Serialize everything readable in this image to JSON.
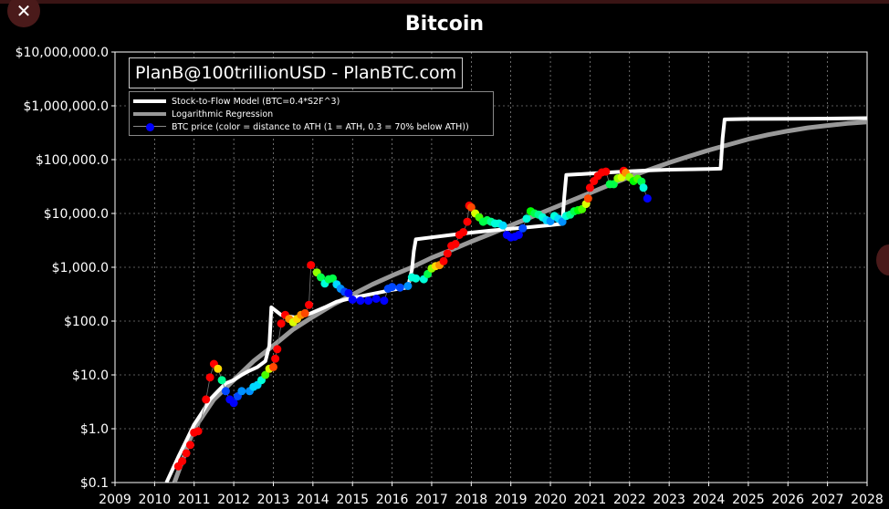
{
  "window": {
    "close_label": "✕"
  },
  "chart_data": {
    "type": "line",
    "title": "Bitcoin",
    "watermark": "PlanB@100trillionUSD - PlanBTC.com",
    "x_ticks": [
      "2009",
      "2010",
      "2011",
      "2012",
      "2013",
      "2014",
      "2015",
      "2016",
      "2017",
      "2018",
      "2019",
      "2020",
      "2021",
      "2022",
      "2023",
      "2024",
      "2025",
      "2026",
      "2027",
      "2028"
    ],
    "y_ticks": [
      "$0.1",
      "$1.0",
      "$10.0",
      "$100.0",
      "$1,000.0",
      "$10,000.0",
      "$100,000.0",
      "$1,000,000.0",
      "$10,000,000.0"
    ],
    "xlim": [
      2009,
      2028
    ],
    "ylim": [
      0.1,
      10000000
    ],
    "yscale": "log",
    "grid": true,
    "legend_position": "top-left",
    "series": [
      {
        "name": "Stock-to-Flow Model (BTC=0.4*S2F^3)",
        "style": "line",
        "color": "#ffffff",
        "points": [
          [
            2010.3,
            0.1
          ],
          [
            2010.6,
            0.3
          ],
          [
            2010.8,
            0.6
          ],
          [
            2011.0,
            1.2
          ],
          [
            2011.2,
            2.0
          ],
          [
            2011.4,
            3.5
          ],
          [
            2011.6,
            5
          ],
          [
            2011.8,
            7
          ],
          [
            2012.0,
            8
          ],
          [
            2012.2,
            10
          ],
          [
            2012.4,
            12
          ],
          [
            2012.6,
            14
          ],
          [
            2012.8,
            18
          ],
          [
            2012.9,
            35
          ],
          [
            2012.95,
            180
          ],
          [
            2013.2,
            130
          ],
          [
            2013.6,
            115
          ],
          [
            2013.9,
            135
          ],
          [
            2014.3,
            180
          ],
          [
            2014.6,
            230
          ],
          [
            2015.0,
            270
          ],
          [
            2015.5,
            320
          ],
          [
            2016.0,
            380
          ],
          [
            2016.4,
            420
          ],
          [
            2016.5,
            900
          ],
          [
            2016.55,
            2000
          ],
          [
            2016.6,
            3300
          ],
          [
            2017.0,
            3600
          ],
          [
            2017.5,
            4000
          ],
          [
            2018.0,
            4400
          ],
          [
            2018.5,
            4800
          ],
          [
            2019.0,
            5200
          ],
          [
            2019.5,
            5600
          ],
          [
            2020.0,
            6100
          ],
          [
            2020.3,
            6400
          ],
          [
            2020.35,
            20000
          ],
          [
            2020.4,
            52000
          ],
          [
            2021.0,
            55000
          ],
          [
            2021.5,
            58000
          ],
          [
            2022.0,
            61000
          ],
          [
            2022.5,
            63000
          ],
          [
            2023.0,
            65000
          ],
          [
            2023.5,
            66000
          ],
          [
            2024.0,
            67000
          ],
          [
            2024.3,
            68000
          ],
          [
            2024.35,
            250000
          ],
          [
            2024.4,
            560000
          ],
          [
            2025.0,
            570000
          ],
          [
            2026.0,
            575000
          ],
          [
            2027.0,
            580000
          ],
          [
            2028.0,
            590000
          ]
        ]
      },
      {
        "name": "Logarithmic Regression",
        "style": "line",
        "color": "#999999",
        "points": [
          [
            2010.5,
            0.1
          ],
          [
            2011.0,
            1.0
          ],
          [
            2011.5,
            3.5
          ],
          [
            2012.0,
            8
          ],
          [
            2012.5,
            18
          ],
          [
            2013.0,
            35
          ],
          [
            2013.5,
            70
          ],
          [
            2014.0,
            120
          ],
          [
            2014.5,
            200
          ],
          [
            2015.0,
            310
          ],
          [
            2015.5,
            480
          ],
          [
            2016.0,
            700
          ],
          [
            2016.5,
            1000
          ],
          [
            2017.0,
            1500
          ],
          [
            2017.5,
            2100
          ],
          [
            2018.0,
            3000
          ],
          [
            2018.5,
            4200
          ],
          [
            2019.0,
            6000
          ],
          [
            2019.5,
            8500
          ],
          [
            2020.0,
            12000
          ],
          [
            2020.5,
            17000
          ],
          [
            2021.0,
            24000
          ],
          [
            2021.5,
            34000
          ],
          [
            2022.0,
            48000
          ],
          [
            2022.5,
            65000
          ],
          [
            2023.0,
            88000
          ],
          [
            2023.5,
            115000
          ],
          [
            2024.0,
            150000
          ],
          [
            2024.5,
            190000
          ],
          [
            2025.0,
            240000
          ],
          [
            2025.5,
            290000
          ],
          [
            2026.0,
            340000
          ],
          [
            2026.5,
            390000
          ],
          [
            2027.0,
            430000
          ],
          [
            2027.5,
            470000
          ],
          [
            2028.0,
            500000
          ]
        ]
      },
      {
        "name": "BTC price (color = distance to ATH (1 = ATH, 0.3 = 70% below ATH))",
        "style": "scatter",
        "color": "#0000ff",
        "points": [
          [
            2010.6,
            0.2,
            1.0
          ],
          [
            2010.7,
            0.25,
            1.0
          ],
          [
            2010.8,
            0.35,
            1.0
          ],
          [
            2010.9,
            0.5,
            1.0
          ],
          [
            2011.0,
            0.85,
            1.0
          ],
          [
            2011.1,
            0.9,
            1.0
          ],
          [
            2011.3,
            3.5,
            1.0
          ],
          [
            2011.4,
            9,
            1.0
          ],
          [
            2011.5,
            16,
            1.0
          ],
          [
            2011.6,
            13,
            0.85
          ],
          [
            2011.7,
            8,
            0.55
          ],
          [
            2011.8,
            5,
            0.35
          ],
          [
            2011.9,
            3.5,
            0.3
          ],
          [
            2012.0,
            3,
            0.3
          ],
          [
            2012.1,
            4,
            0.35
          ],
          [
            2012.2,
            5,
            0.4
          ],
          [
            2012.4,
            5,
            0.4
          ],
          [
            2012.5,
            6,
            0.45
          ],
          [
            2012.6,
            6.5,
            0.45
          ],
          [
            2012.7,
            8,
            0.5
          ],
          [
            2012.8,
            10,
            0.7
          ],
          [
            2012.9,
            13,
            0.8
          ],
          [
            2013.0,
            14,
            0.95
          ],
          [
            2013.05,
            20,
            1.0
          ],
          [
            2013.1,
            30,
            1.0
          ],
          [
            2013.2,
            90,
            1.0
          ],
          [
            2013.3,
            130,
            1.0
          ],
          [
            2013.4,
            110,
            0.9
          ],
          [
            2013.5,
            95,
            0.8
          ],
          [
            2013.6,
            110,
            0.85
          ],
          [
            2013.7,
            130,
            0.9
          ],
          [
            2013.8,
            140,
            0.95
          ],
          [
            2013.9,
            200,
            1.0
          ],
          [
            2013.95,
            1100,
            1.0
          ],
          [
            2014.1,
            800,
            0.75
          ],
          [
            2014.2,
            650,
            0.6
          ],
          [
            2014.3,
            500,
            0.5
          ],
          [
            2014.4,
            600,
            0.6
          ],
          [
            2014.5,
            620,
            0.6
          ],
          [
            2014.6,
            480,
            0.45
          ],
          [
            2014.7,
            400,
            0.4
          ],
          [
            2014.8,
            350,
            0.35
          ],
          [
            2014.9,
            330,
            0.3
          ],
          [
            2015.0,
            250,
            0.3
          ],
          [
            2015.2,
            240,
            0.3
          ],
          [
            2015.4,
            240,
            0.3
          ],
          [
            2015.6,
            260,
            0.3
          ],
          [
            2015.8,
            240,
            0.3
          ],
          [
            2015.9,
            400,
            0.35
          ],
          [
            2016.0,
            430,
            0.35
          ],
          [
            2016.2,
            420,
            0.35
          ],
          [
            2016.4,
            450,
            0.4
          ],
          [
            2016.5,
            650,
            0.5
          ],
          [
            2016.6,
            620,
            0.5
          ],
          [
            2016.8,
            600,
            0.5
          ],
          [
            2016.9,
            750,
            0.6
          ],
          [
            2017.0,
            950,
            0.75
          ],
          [
            2017.1,
            1050,
            0.85
          ],
          [
            2017.2,
            1100,
            0.9
          ],
          [
            2017.3,
            1300,
            1.0
          ],
          [
            2017.4,
            1800,
            1.0
          ],
          [
            2017.5,
            2500,
            1.0
          ],
          [
            2017.6,
            2700,
            1.0
          ],
          [
            2017.7,
            4000,
            1.0
          ],
          [
            2017.8,
            4500,
            1.0
          ],
          [
            2017.9,
            7000,
            1.0
          ],
          [
            2017.95,
            14000,
            1.0
          ],
          [
            2018.0,
            13000,
            0.95
          ],
          [
            2018.1,
            10000,
            0.8
          ],
          [
            2018.2,
            8500,
            0.7
          ],
          [
            2018.3,
            7000,
            0.6
          ],
          [
            2018.4,
            7500,
            0.6
          ],
          [
            2018.5,
            7000,
            0.55
          ],
          [
            2018.6,
            6500,
            0.5
          ],
          [
            2018.7,
            6500,
            0.5
          ],
          [
            2018.8,
            6000,
            0.45
          ],
          [
            2018.9,
            4000,
            0.3
          ],
          [
            2019.0,
            3600,
            0.3
          ],
          [
            2019.1,
            3700,
            0.3
          ],
          [
            2019.2,
            4000,
            0.3
          ],
          [
            2019.3,
            5300,
            0.35
          ],
          [
            2019.4,
            8000,
            0.5
          ],
          [
            2019.5,
            11000,
            0.65
          ],
          [
            2019.6,
            10000,
            0.6
          ],
          [
            2019.7,
            9500,
            0.55
          ],
          [
            2019.8,
            8500,
            0.5
          ],
          [
            2019.9,
            7500,
            0.45
          ],
          [
            2020.0,
            7200,
            0.4
          ],
          [
            2020.1,
            9000,
            0.5
          ],
          [
            2020.2,
            8000,
            0.45
          ],
          [
            2020.3,
            7000,
            0.4
          ],
          [
            2020.4,
            9000,
            0.5
          ],
          [
            2020.5,
            9500,
            0.55
          ],
          [
            2020.6,
            11000,
            0.6
          ],
          [
            2020.7,
            11500,
            0.65
          ],
          [
            2020.8,
            12000,
            0.7
          ],
          [
            2020.9,
            15000,
            0.8
          ],
          [
            2020.95,
            19000,
            0.95
          ],
          [
            2021.0,
            30000,
            1.0
          ],
          [
            2021.1,
            40000,
            1.0
          ],
          [
            2021.2,
            50000,
            1.0
          ],
          [
            2021.3,
            58000,
            1.0
          ],
          [
            2021.4,
            60000,
            1.0
          ],
          [
            2021.5,
            35000,
            0.6
          ],
          [
            2021.6,
            35000,
            0.6
          ],
          [
            2021.7,
            45000,
            0.75
          ],
          [
            2021.8,
            47000,
            0.8
          ],
          [
            2021.85,
            62000,
            1.0
          ],
          [
            2021.9,
            57000,
            0.9
          ],
          [
            2022.0,
            47000,
            0.75
          ],
          [
            2022.1,
            40000,
            0.65
          ],
          [
            2022.2,
            44000,
            0.7
          ],
          [
            2022.3,
            39000,
            0.6
          ],
          [
            2022.35,
            30000,
            0.5
          ],
          [
            2022.45,
            19000,
            0.3
          ]
        ]
      }
    ]
  }
}
